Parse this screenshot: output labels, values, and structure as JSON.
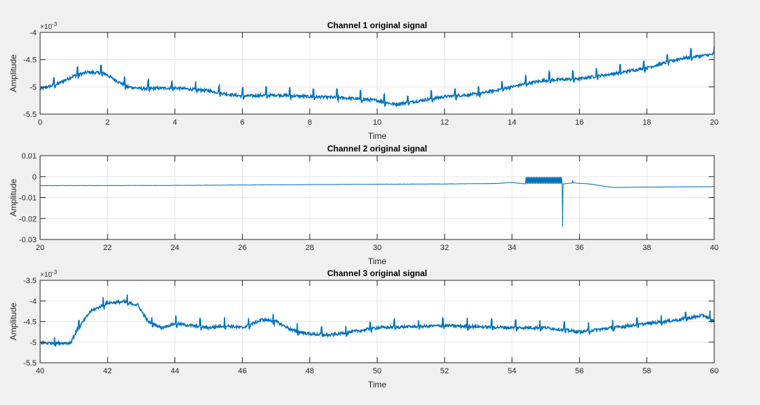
{
  "figure": {
    "background": "#f0f0f0",
    "axes_background": "#ffffff",
    "line_color": "#0072bd",
    "grid_color": "#e6e6e6"
  },
  "chart_data": [
    {
      "type": "line",
      "title": "Channel 1 original signal",
      "xlabel": "Time",
      "ylabel": "Amplitude",
      "xlim": [
        0,
        20
      ],
      "ylim": [
        -5.5,
        -4
      ],
      "xticks": [
        0,
        2,
        4,
        6,
        8,
        10,
        12,
        14,
        16,
        18,
        20
      ],
      "yticks": [
        -5.5,
        -5,
        -4.5,
        -4
      ],
      "ytick_labels": [
        "-5.5",
        "-5",
        "-4.5",
        "-4"
      ],
      "y_exponent": "×10",
      "y_exponent_power": "-3",
      "grid": true,
      "series": [
        {
          "x": [
            0,
            0.5,
            1,
            1.4,
            1.9,
            2.3,
            2.6,
            3,
            4,
            5,
            5.5,
            6,
            7,
            8,
            9,
            10,
            10.5,
            11,
            12,
            13,
            14,
            14.5,
            15,
            16,
            17,
            18,
            19,
            20
          ],
          "y": [
            -5.04,
            -4.95,
            -4.8,
            -4.73,
            -4.75,
            -4.9,
            -5.0,
            -5.03,
            -5.02,
            -5.07,
            -5.13,
            -5.17,
            -5.15,
            -5.18,
            -5.2,
            -5.25,
            -5.32,
            -5.28,
            -5.18,
            -5.13,
            -5.0,
            -4.93,
            -4.88,
            -4.85,
            -4.76,
            -4.65,
            -4.48,
            -4.4
          ]
        }
      ]
    },
    {
      "type": "line",
      "title": "Channel 2 original signal",
      "xlabel": "Time",
      "ylabel": "Amplitude",
      "xlim": [
        20,
        40
      ],
      "ylim": [
        -0.03,
        0.01
      ],
      "xticks": [
        20,
        22,
        24,
        26,
        28,
        30,
        32,
        34,
        36,
        38,
        40
      ],
      "yticks": [
        -0.03,
        -0.02,
        -0.01,
        0,
        0.01
      ],
      "ytick_labels": [
        "-0.03",
        "-0.02",
        "-0.01",
        "0",
        "0.01"
      ],
      "grid": true,
      "series": [
        {
          "x": [
            20,
            24,
            28,
            32,
            33.5,
            34,
            34.4,
            35.5,
            35.8,
            36.3,
            37,
            38,
            40
          ],
          "y": [
            -0.0043,
            -0.0042,
            -0.0038,
            -0.0035,
            -0.0033,
            -0.0028,
            -0.0035,
            -0.0035,
            -0.003,
            -0.0035,
            -0.0052,
            -0.005,
            -0.0048
          ]
        }
      ]
    },
    {
      "type": "line",
      "title": "Channel 3 original signal",
      "xlabel": "Time",
      "ylabel": "Amplitude",
      "xlim": [
        40,
        60
      ],
      "ylim": [
        -5.5,
        -3.5
      ],
      "xticks": [
        40,
        42,
        44,
        46,
        48,
        50,
        52,
        54,
        56,
        58,
        60
      ],
      "yticks": [
        -5.5,
        -5,
        -4.5,
        -4,
        -3.5
      ],
      "ytick_labels": [
        "-5.5",
        "-5",
        "-4.5",
        "-4",
        "-3.5"
      ],
      "y_exponent": "×10",
      "y_exponent_power": "-3",
      "grid": true,
      "series": [
        {
          "x": [
            40,
            40.9,
            41.1,
            41.5,
            42,
            42.5,
            42.9,
            43.2,
            43.6,
            44,
            45,
            45.5,
            46,
            46.6,
            47,
            47.5,
            48,
            48.6,
            49.5,
            50,
            52,
            54,
            55,
            56,
            57,
            58,
            59,
            59.7,
            60
          ],
          "y": [
            -5.02,
            -5.02,
            -4.7,
            -4.25,
            -4.05,
            -4.02,
            -4.1,
            -4.5,
            -4.65,
            -4.55,
            -4.65,
            -4.6,
            -4.65,
            -4.45,
            -4.5,
            -4.72,
            -4.8,
            -4.83,
            -4.72,
            -4.65,
            -4.6,
            -4.65,
            -4.65,
            -4.75,
            -4.65,
            -4.55,
            -4.45,
            -4.35,
            -4.5
          ]
        }
      ]
    }
  ]
}
